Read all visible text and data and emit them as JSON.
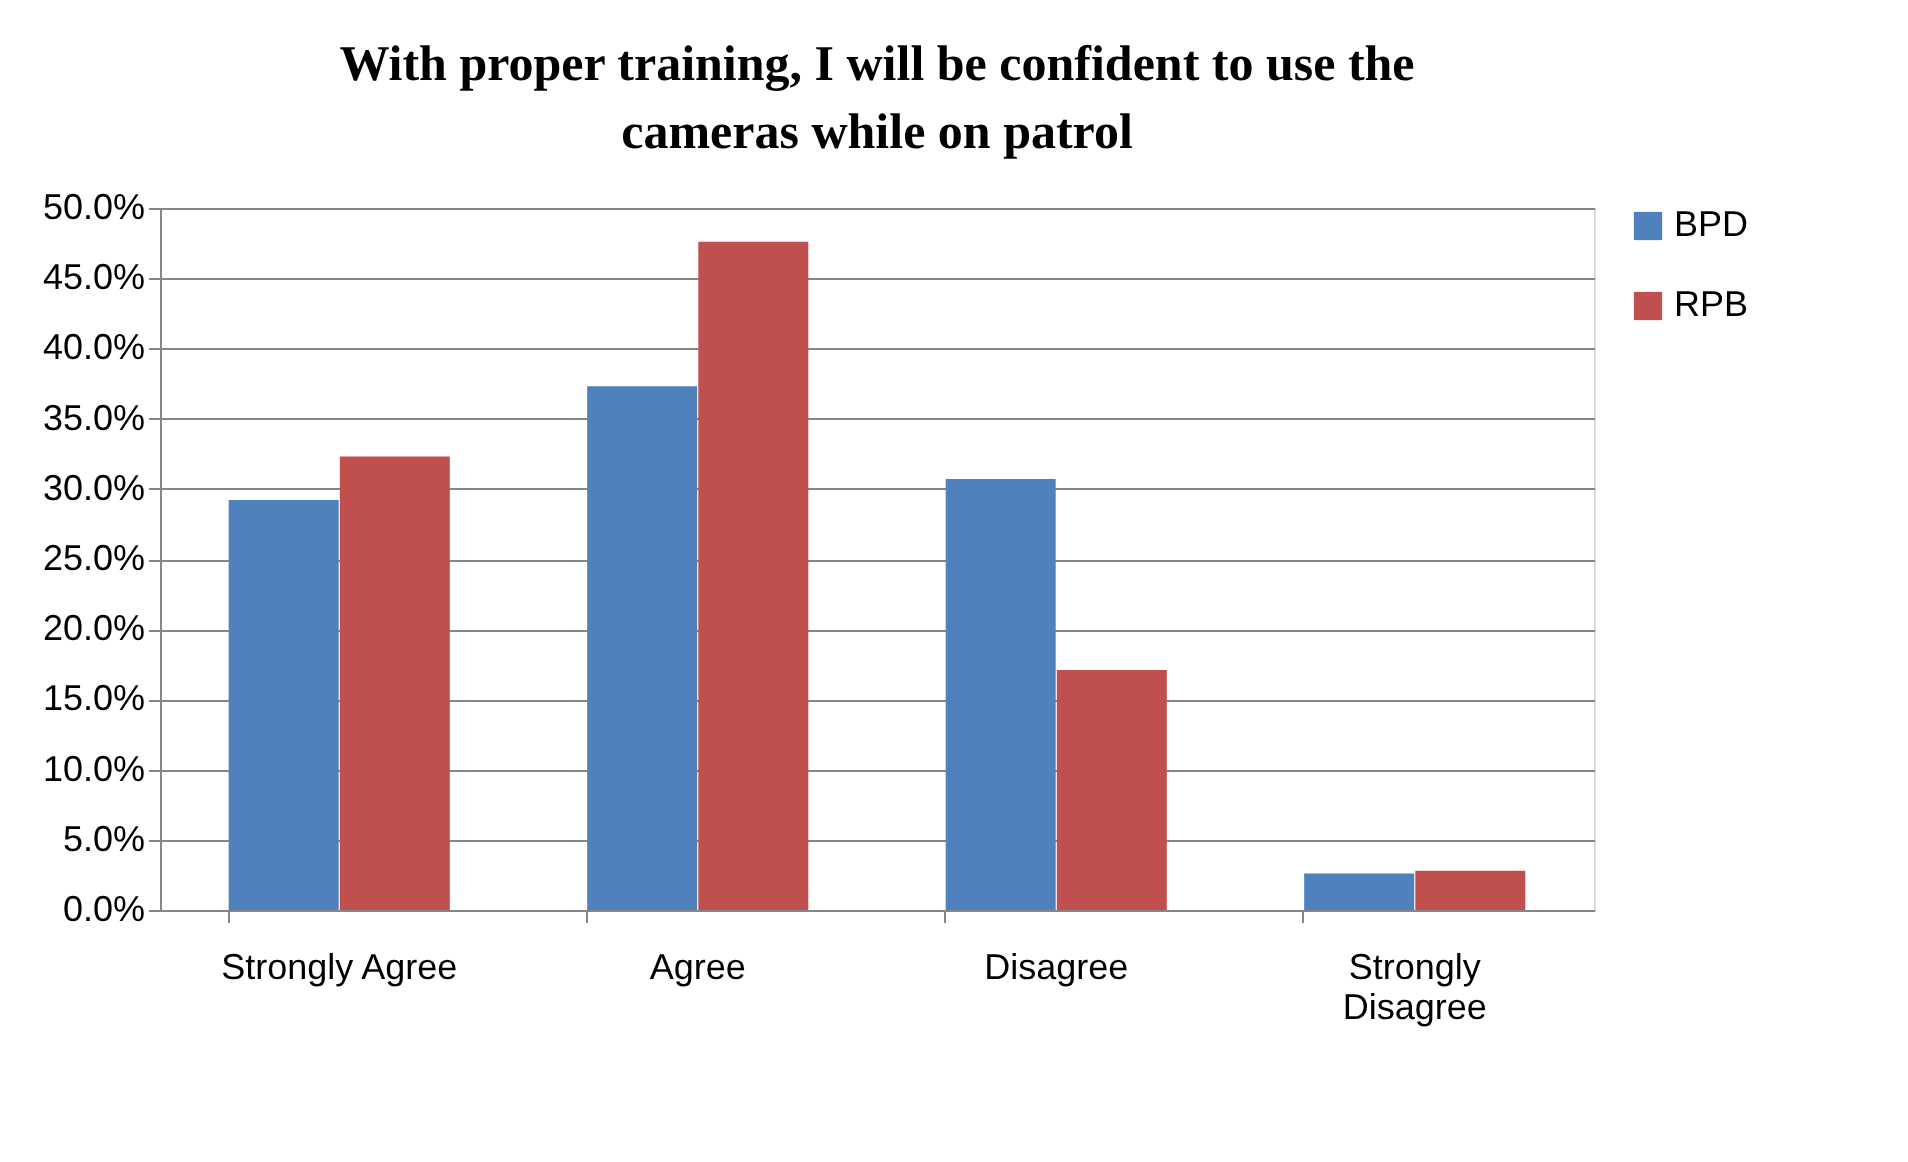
{
  "chart_data": {
    "type": "bar",
    "title": "With proper training, I will be confident to use the cameras while on patrol",
    "categories": [
      "Strongly Agree",
      "Agree",
      "Disagree",
      "Strongly Disagree"
    ],
    "series": [
      {
        "name": "BPD",
        "color": "#4f81bd",
        "values": [
          29.2,
          37.3,
          30.7,
          2.6
        ]
      },
      {
        "name": "RPB",
        "color": "#c0504d",
        "values": [
          32.3,
          47.6,
          17.1,
          2.8
        ]
      }
    ],
    "ylim": [
      0,
      50
    ],
    "yticks": [
      {
        "value": 0,
        "label": "0.0%"
      },
      {
        "value": 5,
        "label": "5.0%"
      },
      {
        "value": 10,
        "label": "10.0%"
      },
      {
        "value": 15,
        "label": "15.0%"
      },
      {
        "value": 20,
        "label": "20.0%"
      },
      {
        "value": 25,
        "label": "25.0%"
      },
      {
        "value": 30,
        "label": "30.0%"
      },
      {
        "value": 35,
        "label": "35.0%"
      },
      {
        "value": 40,
        "label": "40.0%"
      },
      {
        "value": 45,
        "label": "45.0%"
      },
      {
        "value": 50,
        "label": "50.0%"
      }
    ],
    "grid": "y",
    "legend": "right"
  }
}
